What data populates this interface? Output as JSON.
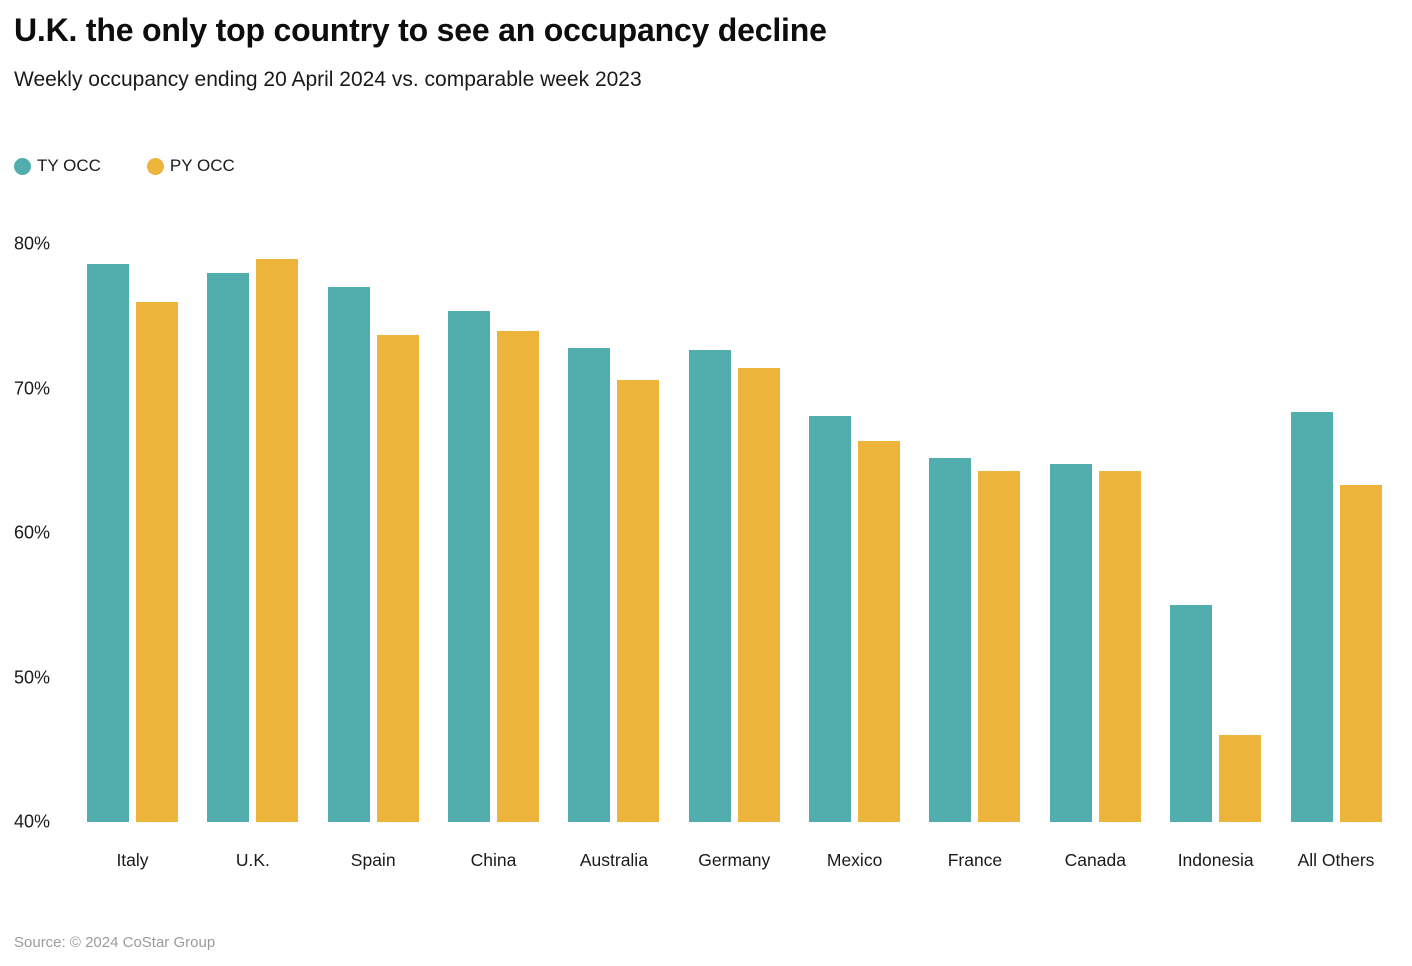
{
  "title": "U.K. the only top country to see an occupancy decline",
  "subtitle": "Weekly occupancy ending 20 April 2024 vs. comparable week 2023",
  "source": "Source: © 2024 CoStar Group",
  "colors": {
    "ty": "#52AEAC",
    "py": "#EDB43C",
    "text": "#1a1a1a",
    "source_text": "#9b9b9b"
  },
  "legend": [
    {
      "label": "TY OCC",
      "color": "#52AEAC",
      "icon": "circle-swatch-icon"
    },
    {
      "label": "PY OCC",
      "color": "#EDB43C",
      "icon": "circle-swatch-icon"
    }
  ],
  "chart_data": {
    "type": "bar",
    "categories": [
      "Italy",
      "U.K.",
      "Spain",
      "China",
      "Australia",
      "Germany",
      "Mexico",
      "France",
      "Canada",
      "Indonesia",
      "All Others"
    ],
    "series": [
      {
        "name": "TY OCC",
        "color": "#52AEAC",
        "values": [
          78.6,
          78.0,
          77.0,
          75.4,
          72.8,
          72.7,
          68.1,
          65.2,
          64.8,
          55.0,
          68.4
        ]
      },
      {
        "name": "PY OCC",
        "color": "#EDB43C",
        "values": [
          76.0,
          79.0,
          73.7,
          74.0,
          70.6,
          71.4,
          66.4,
          64.3,
          64.3,
          46.0,
          63.3
        ]
      }
    ],
    "title": "U.K. the only top country to see an occupancy decline",
    "xlabel": "",
    "ylabel": "",
    "ylim": [
      40,
      80
    ],
    "yticks": [
      80,
      70,
      60,
      50,
      40
    ],
    "ytick_labels": [
      "80%",
      "70%",
      "60%",
      "50%",
      "40%"
    ],
    "grid": false,
    "legend_position": "top-left"
  }
}
